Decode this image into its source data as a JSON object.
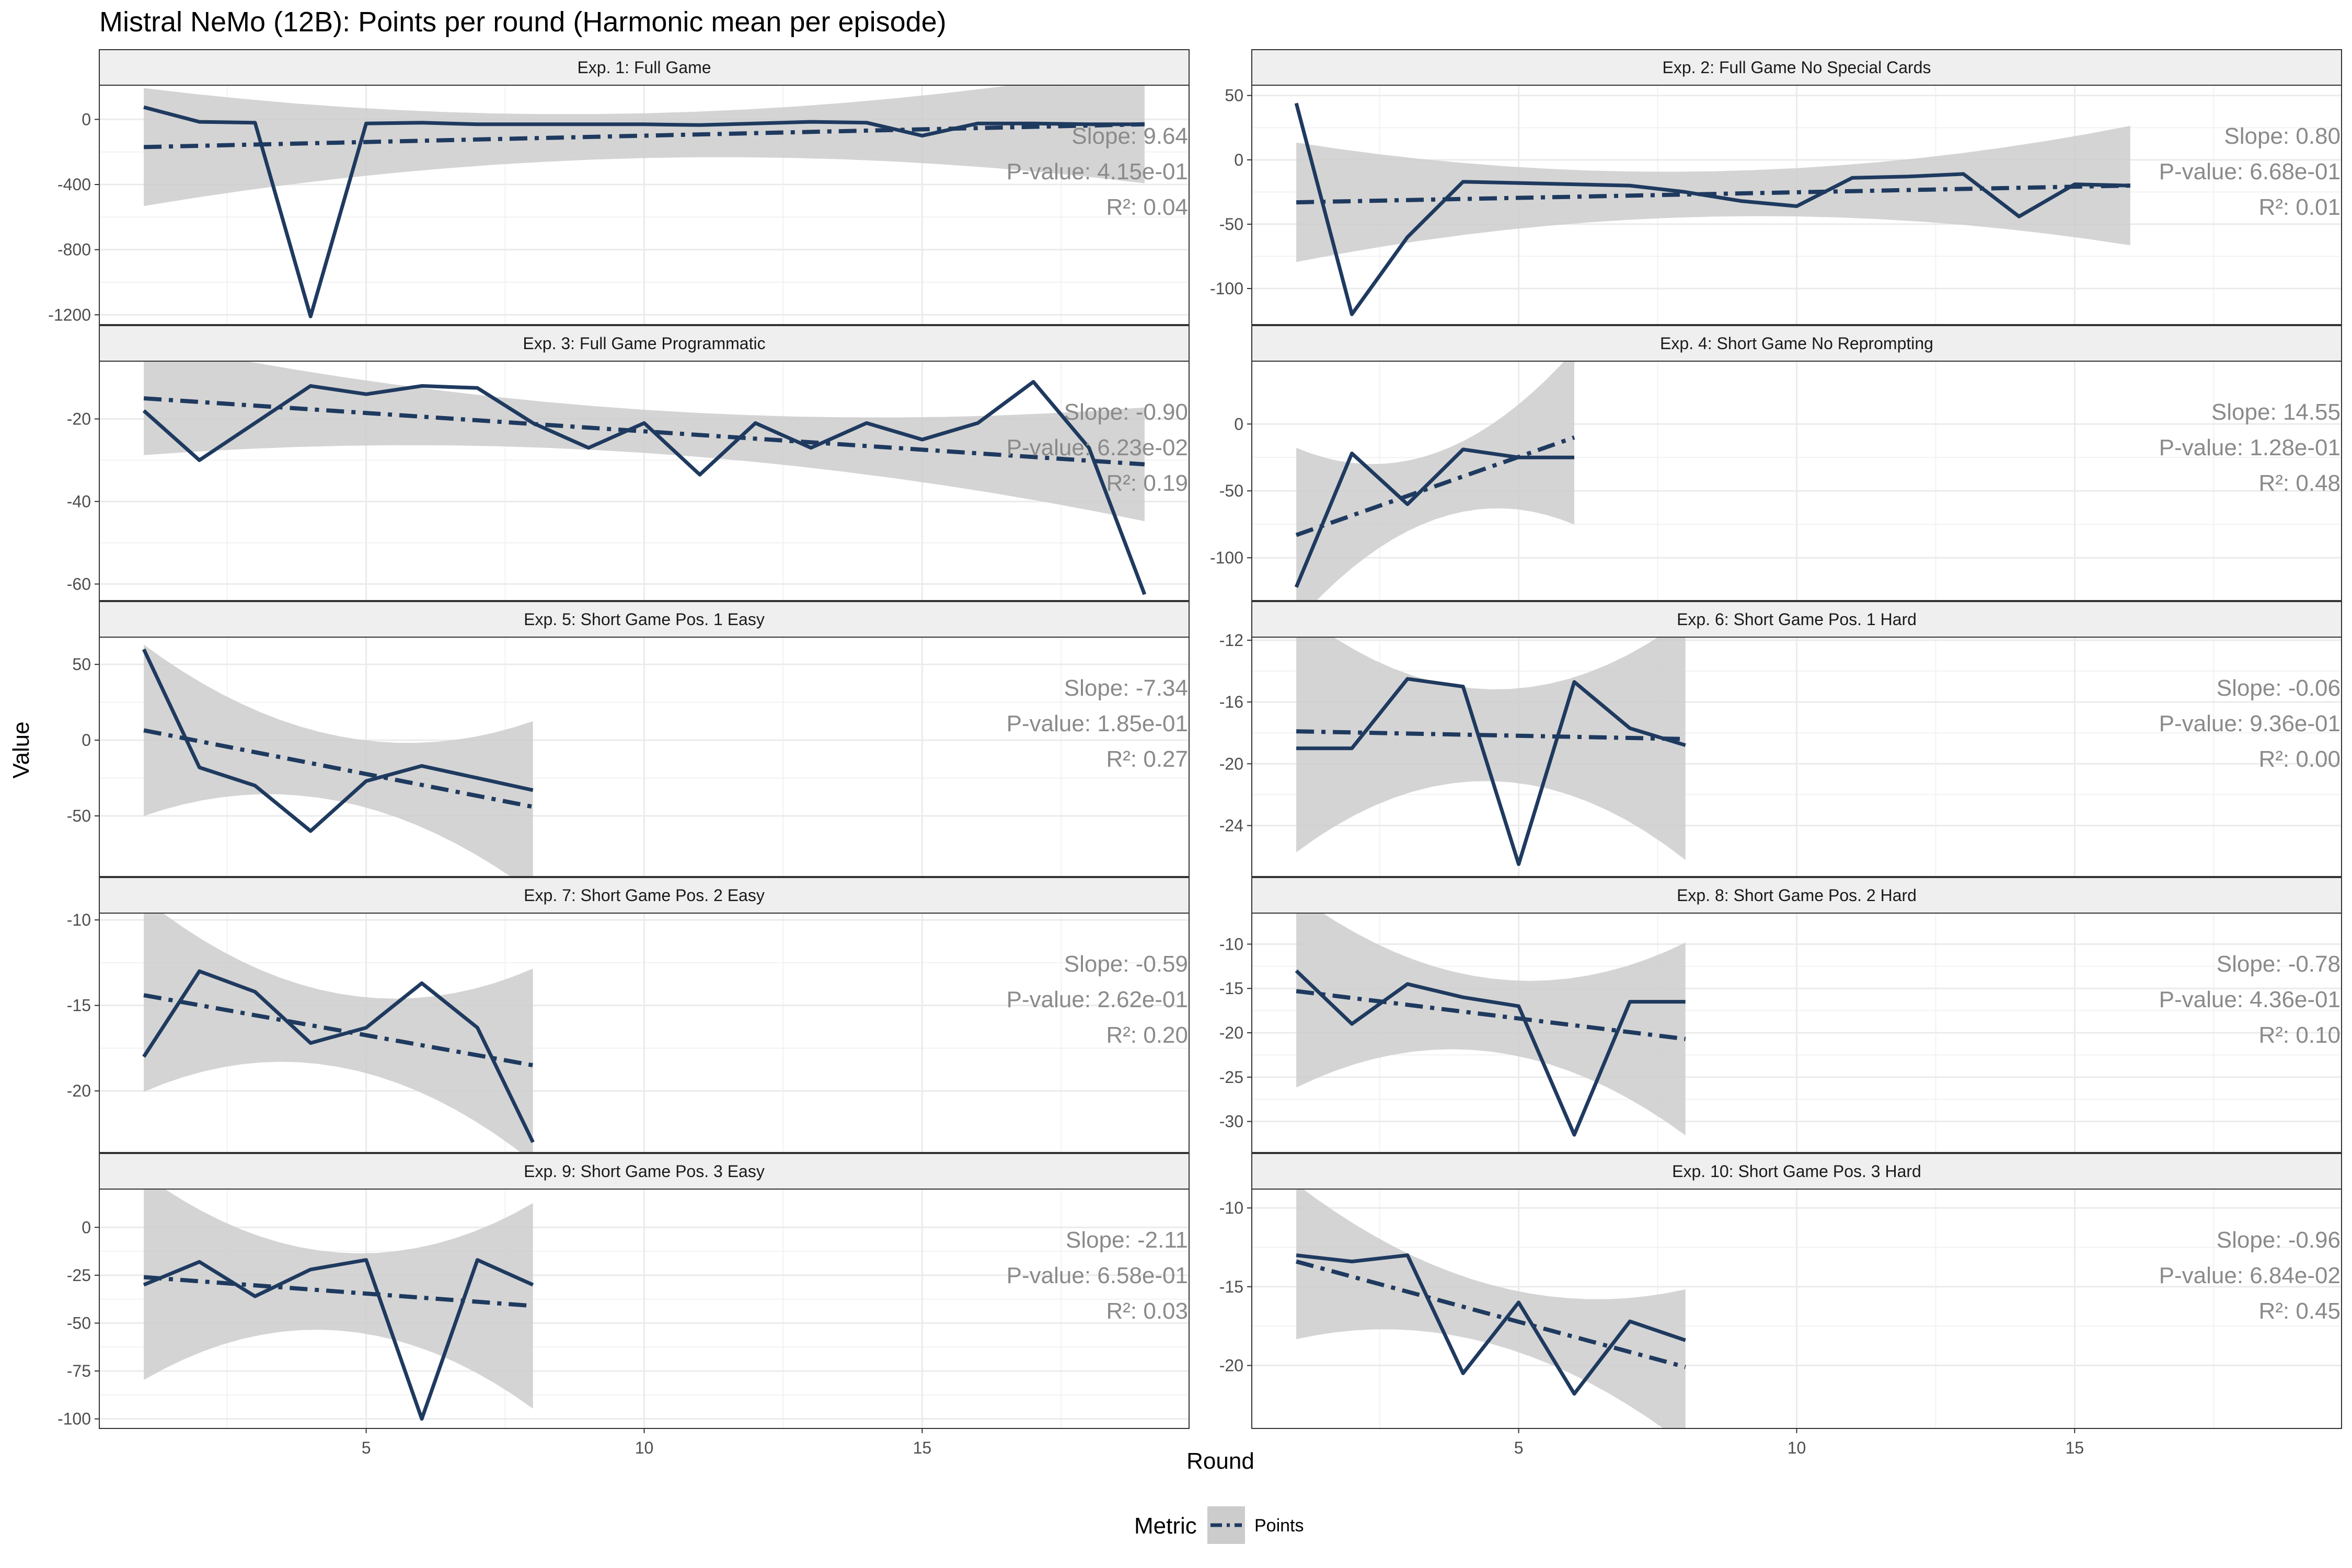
{
  "chart_data": {
    "type": "line",
    "title": "Mistral NeMo (12B): Points per round (Harmonic mean per episode)",
    "xlabel": "Round",
    "ylabel": "Value",
    "x_ticks": [
      5,
      10,
      15
    ],
    "xlim": [
      0.2,
      19.8
    ],
    "legend": {
      "title": "Metric",
      "entries": [
        "Points"
      ],
      "position": "bottom"
    },
    "colors": {
      "line": "#1f3a5f",
      "band": "#cccccc",
      "strip_bg": "#efefef",
      "stat_text": "#8a8a8a"
    },
    "panels": [
      {
        "strip": "Exp. 1: Full Game",
        "x": [
          1,
          2,
          3,
          4,
          5,
          6,
          7,
          8,
          9,
          10,
          11,
          12,
          13,
          14,
          15,
          16,
          17,
          18,
          19
        ],
        "y": [
          75,
          -15,
          -20,
          -1210,
          -25,
          -20,
          -30,
          -30,
          -30,
          -30,
          -35,
          -25,
          -15,
          -20,
          -100,
          -25,
          -25,
          -30,
          -30
        ],
        "trend": [
          -170,
          -30
        ],
        "band_half": [
          230,
          250
        ],
        "ylim": [
          -1260,
          210
        ],
        "y_ticks": [
          0,
          -400,
          -800,
          -1200
        ],
        "y_tick_labels": [
          "0",
          "-400",
          "-800",
          "-1200"
        ],
        "stats": [
          "Slope: 9.64",
          "P-value: 4.15e-01",
          "R²: 0.04"
        ]
      },
      {
        "strip": "Exp. 2: Full Game No Special Cards",
        "x": [
          1,
          2,
          3,
          4,
          5,
          6,
          7,
          8,
          9,
          10,
          11,
          12,
          13,
          14,
          15,
          16
        ],
        "y": [
          44,
          -120,
          -60,
          -17,
          -18,
          -19,
          -20,
          -25,
          -32,
          -36,
          -14,
          -13,
          -11,
          -44,
          -19,
          -20
        ],
        "trend": [
          -33,
          -20
        ],
        "band_half": [
          32,
          32
        ],
        "ylim": [
          -128,
          58
        ],
        "y_ticks": [
          50,
          0,
          -50,
          -100
        ],
        "y_tick_labels": [
          "50",
          "0",
          "-50",
          "-100"
        ],
        "stats": [
          "Slope: 0.80",
          "P-value: 6.68e-01",
          "R²: 0.01"
        ]
      },
      {
        "strip": "Exp. 3: Full Game Programmatic",
        "x": [
          1,
          2,
          3,
          4,
          5,
          6,
          7,
          8,
          9,
          10,
          11,
          12,
          13,
          14,
          15,
          16,
          17,
          18,
          19
        ],
        "y": [
          -18,
          -30,
          -21,
          -12,
          -14,
          -12,
          -12.5,
          -21,
          -27,
          -21,
          -33.5,
          -21,
          -27,
          -21,
          -25,
          -21,
          -11,
          -27,
          -62.5
        ],
        "trend": [
          -15,
          -31
        ],
        "band_half": [
          9.5,
          9.5
        ],
        "ylim": [
          -64,
          -6
        ],
        "y_ticks": [
          -20,
          -40,
          -60
        ],
        "y_tick_labels": [
          "-20",
          "-40",
          "-60"
        ],
        "stats": [
          "Slope: -0.90",
          "P-value: 6.23e-02",
          "R²: 0.19"
        ]
      },
      {
        "strip": "Exp. 4: Short Game No Reprompting",
        "x": [
          1,
          2,
          3,
          4,
          5,
          6
        ],
        "y": [
          -122,
          -22,
          -60,
          -19,
          -25,
          -25
        ],
        "trend": [
          -83,
          -10
        ],
        "band_half": [
          45,
          45
        ],
        "ylim": [
          -132,
          47
        ],
        "y_ticks": [
          0,
          -50,
          -100
        ],
        "y_tick_labels": [
          "0",
          "-50",
          "-100"
        ],
        "stats": [
          "Slope: 14.55",
          "P-value: 1.28e-01",
          "R²: 0.48"
        ]
      },
      {
        "strip": "Exp. 5: Short Game Pos. 1 Easy",
        "x": [
          1,
          2,
          3,
          4,
          5,
          6,
          7,
          8
        ],
        "y": [
          60,
          -18,
          -30,
          -60,
          -27,
          -17,
          -25,
          -33
        ],
        "trend": [
          6.5,
          -44
        ],
        "band_half": [
          39,
          39
        ],
        "ylim": [
          -90,
          68
        ],
        "y_ticks": [
          50,
          0,
          -50
        ],
        "y_tick_labels": [
          "50",
          "0",
          "-50"
        ],
        "stats": [
          "Slope: -7.34",
          "P-value: 1.85e-01",
          "R²: 0.27"
        ]
      },
      {
        "strip": "Exp. 6: Short Game Pos. 1 Hard",
        "x": [
          1,
          2,
          3,
          4,
          5,
          6,
          7,
          8
        ],
        "y": [
          -19,
          -19,
          -14.5,
          -15,
          -26.5,
          -14.7,
          -17.7,
          -18.8
        ],
        "trend": [
          -17.9,
          -18.4
        ],
        "band_half": [
          5.4,
          5.4
        ],
        "ylim": [
          -27.3,
          -11.8
        ],
        "y_ticks": [
          -12,
          -16,
          -20,
          -24
        ],
        "y_tick_labels": [
          "-12",
          "-16",
          "-20",
          "-24"
        ],
        "stats": [
          "Slope: -0.06",
          "P-value: 9.36e-01",
          "R²: 0.00"
        ]
      },
      {
        "strip": "Exp. 7: Short Game Pos. 2 Easy",
        "x": [
          1,
          2,
          3,
          4,
          5,
          6,
          7,
          8
        ],
        "y": [
          -18,
          -13,
          -14.2,
          -17.2,
          -16.3,
          -13.7,
          -16.3,
          -23
        ],
        "trend": [
          -14.4,
          -18.5
        ],
        "band_half": [
          3.9,
          3.9
        ],
        "ylim": [
          -23.6,
          -9.6
        ],
        "y_ticks": [
          -10,
          -15,
          -20
        ],
        "y_tick_labels": [
          "-10",
          "-15",
          "-20"
        ],
        "stats": [
          "Slope: -0.59",
          "P-value: 2.62e-01",
          "R²: 0.20"
        ]
      },
      {
        "strip": "Exp. 8: Short Game Pos. 2 Hard",
        "x": [
          1,
          2,
          3,
          4,
          5,
          6,
          7,
          8
        ],
        "y": [
          -13,
          -19,
          -14.5,
          -16,
          -17,
          -31.5,
          -16.5,
          -16.5
        ],
        "trend": [
          -15.3,
          -20.7
        ],
        "band_half": [
          7.5,
          7.5
        ],
        "ylim": [
          -33.5,
          -6.5
        ],
        "y_ticks": [
          -10,
          -15,
          -20,
          -25,
          -30
        ],
        "y_tick_labels": [
          "-10",
          "-15",
          "-20",
          "-25",
          "-30"
        ],
        "stats": [
          "Slope: -0.78",
          "P-value: 4.36e-01",
          "R²: 0.10"
        ]
      },
      {
        "strip": "Exp. 9: Short Game Pos. 3 Easy",
        "x": [
          1,
          2,
          3,
          4,
          5,
          6,
          7,
          8
        ],
        "y": [
          -30,
          -18,
          -36,
          -22,
          -17,
          -100,
          -17,
          -30
        ],
        "trend": [
          -26,
          -41
        ],
        "band_half": [
          37,
          37
        ],
        "ylim": [
          -105,
          20
        ],
        "y_ticks": [
          0,
          -25,
          -50,
          -75,
          -100
        ],
        "y_tick_labels": [
          "0",
          "-25",
          "-50",
          "-75",
          "-100"
        ],
        "stats": [
          "Slope: -2.11",
          "P-value: 6.58e-01",
          "R²: 0.03"
        ]
      },
      {
        "strip": "Exp. 10: Short Game Pos. 3 Hard",
        "x": [
          1,
          2,
          3,
          4,
          5,
          6,
          7,
          8
        ],
        "y": [
          -13,
          -13.4,
          -13,
          -20.5,
          -16,
          -21.8,
          -17.2,
          -18.4
        ],
        "trend": [
          -13.4,
          -20.1
        ],
        "band_half": [
          3.4,
          3.4
        ],
        "ylim": [
          -24,
          -8.8
        ],
        "y_ticks": [
          -10,
          -15,
          -20
        ],
        "y_tick_labels": [
          "-10",
          "-15",
          "-20"
        ],
        "stats": [
          "Slope: -0.96",
          "P-value: 6.84e-02",
          "R²: 0.45"
        ]
      }
    ]
  }
}
